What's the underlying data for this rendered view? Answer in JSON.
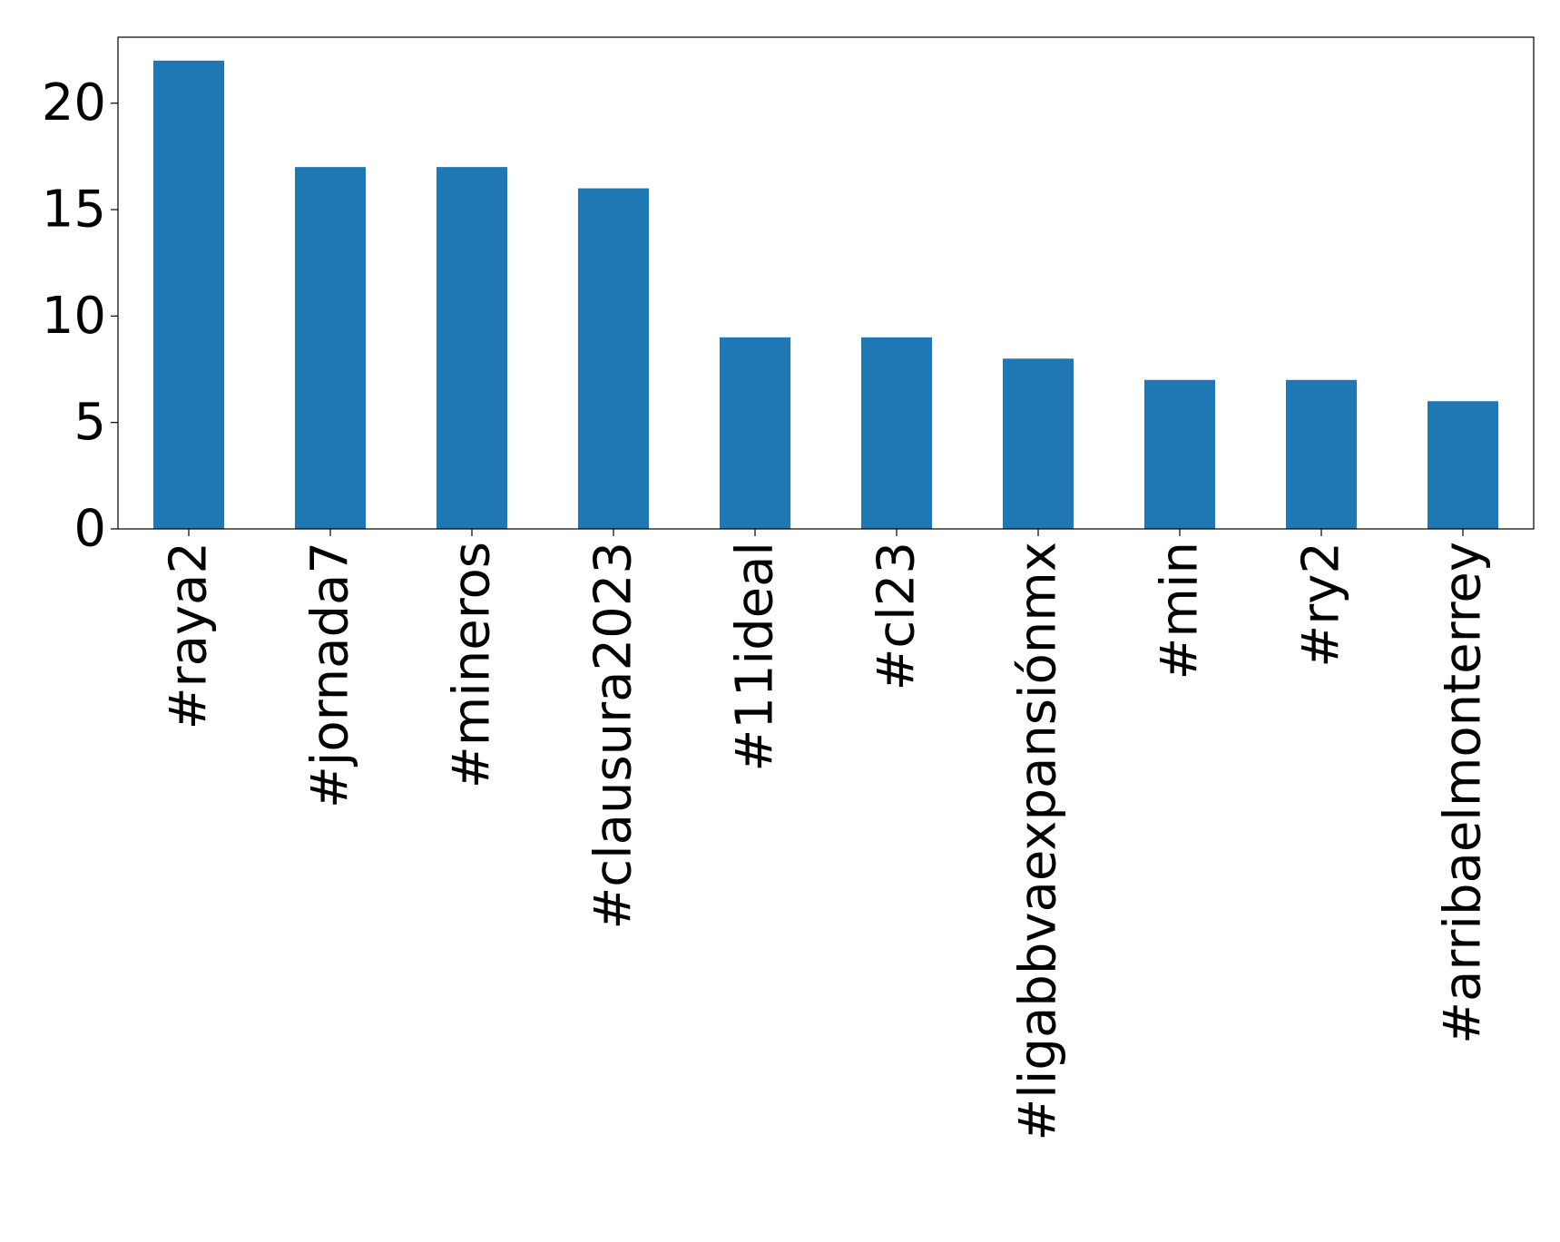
{
  "chart_data": {
    "type": "bar",
    "title": "",
    "xlabel": "",
    "ylabel": "",
    "categories": [
      "#raya2",
      "#jornada7",
      "#mineros",
      "#clausura2023",
      "#11ideal",
      "#cl23",
      "#ligabbvaexpansiónmx",
      "#min",
      "#ry2",
      "#arribaelmonterrey"
    ],
    "values": [
      22,
      17,
      17,
      16,
      9,
      9,
      8,
      7,
      7,
      6
    ],
    "ylim": [
      0,
      23.1
    ],
    "yticks": [
      0,
      5,
      10,
      15,
      20
    ],
    "grid": false,
    "legend": "none",
    "colors": {
      "bar": "#1f77b4",
      "axes": "#000000",
      "background": "#ffffff"
    }
  }
}
